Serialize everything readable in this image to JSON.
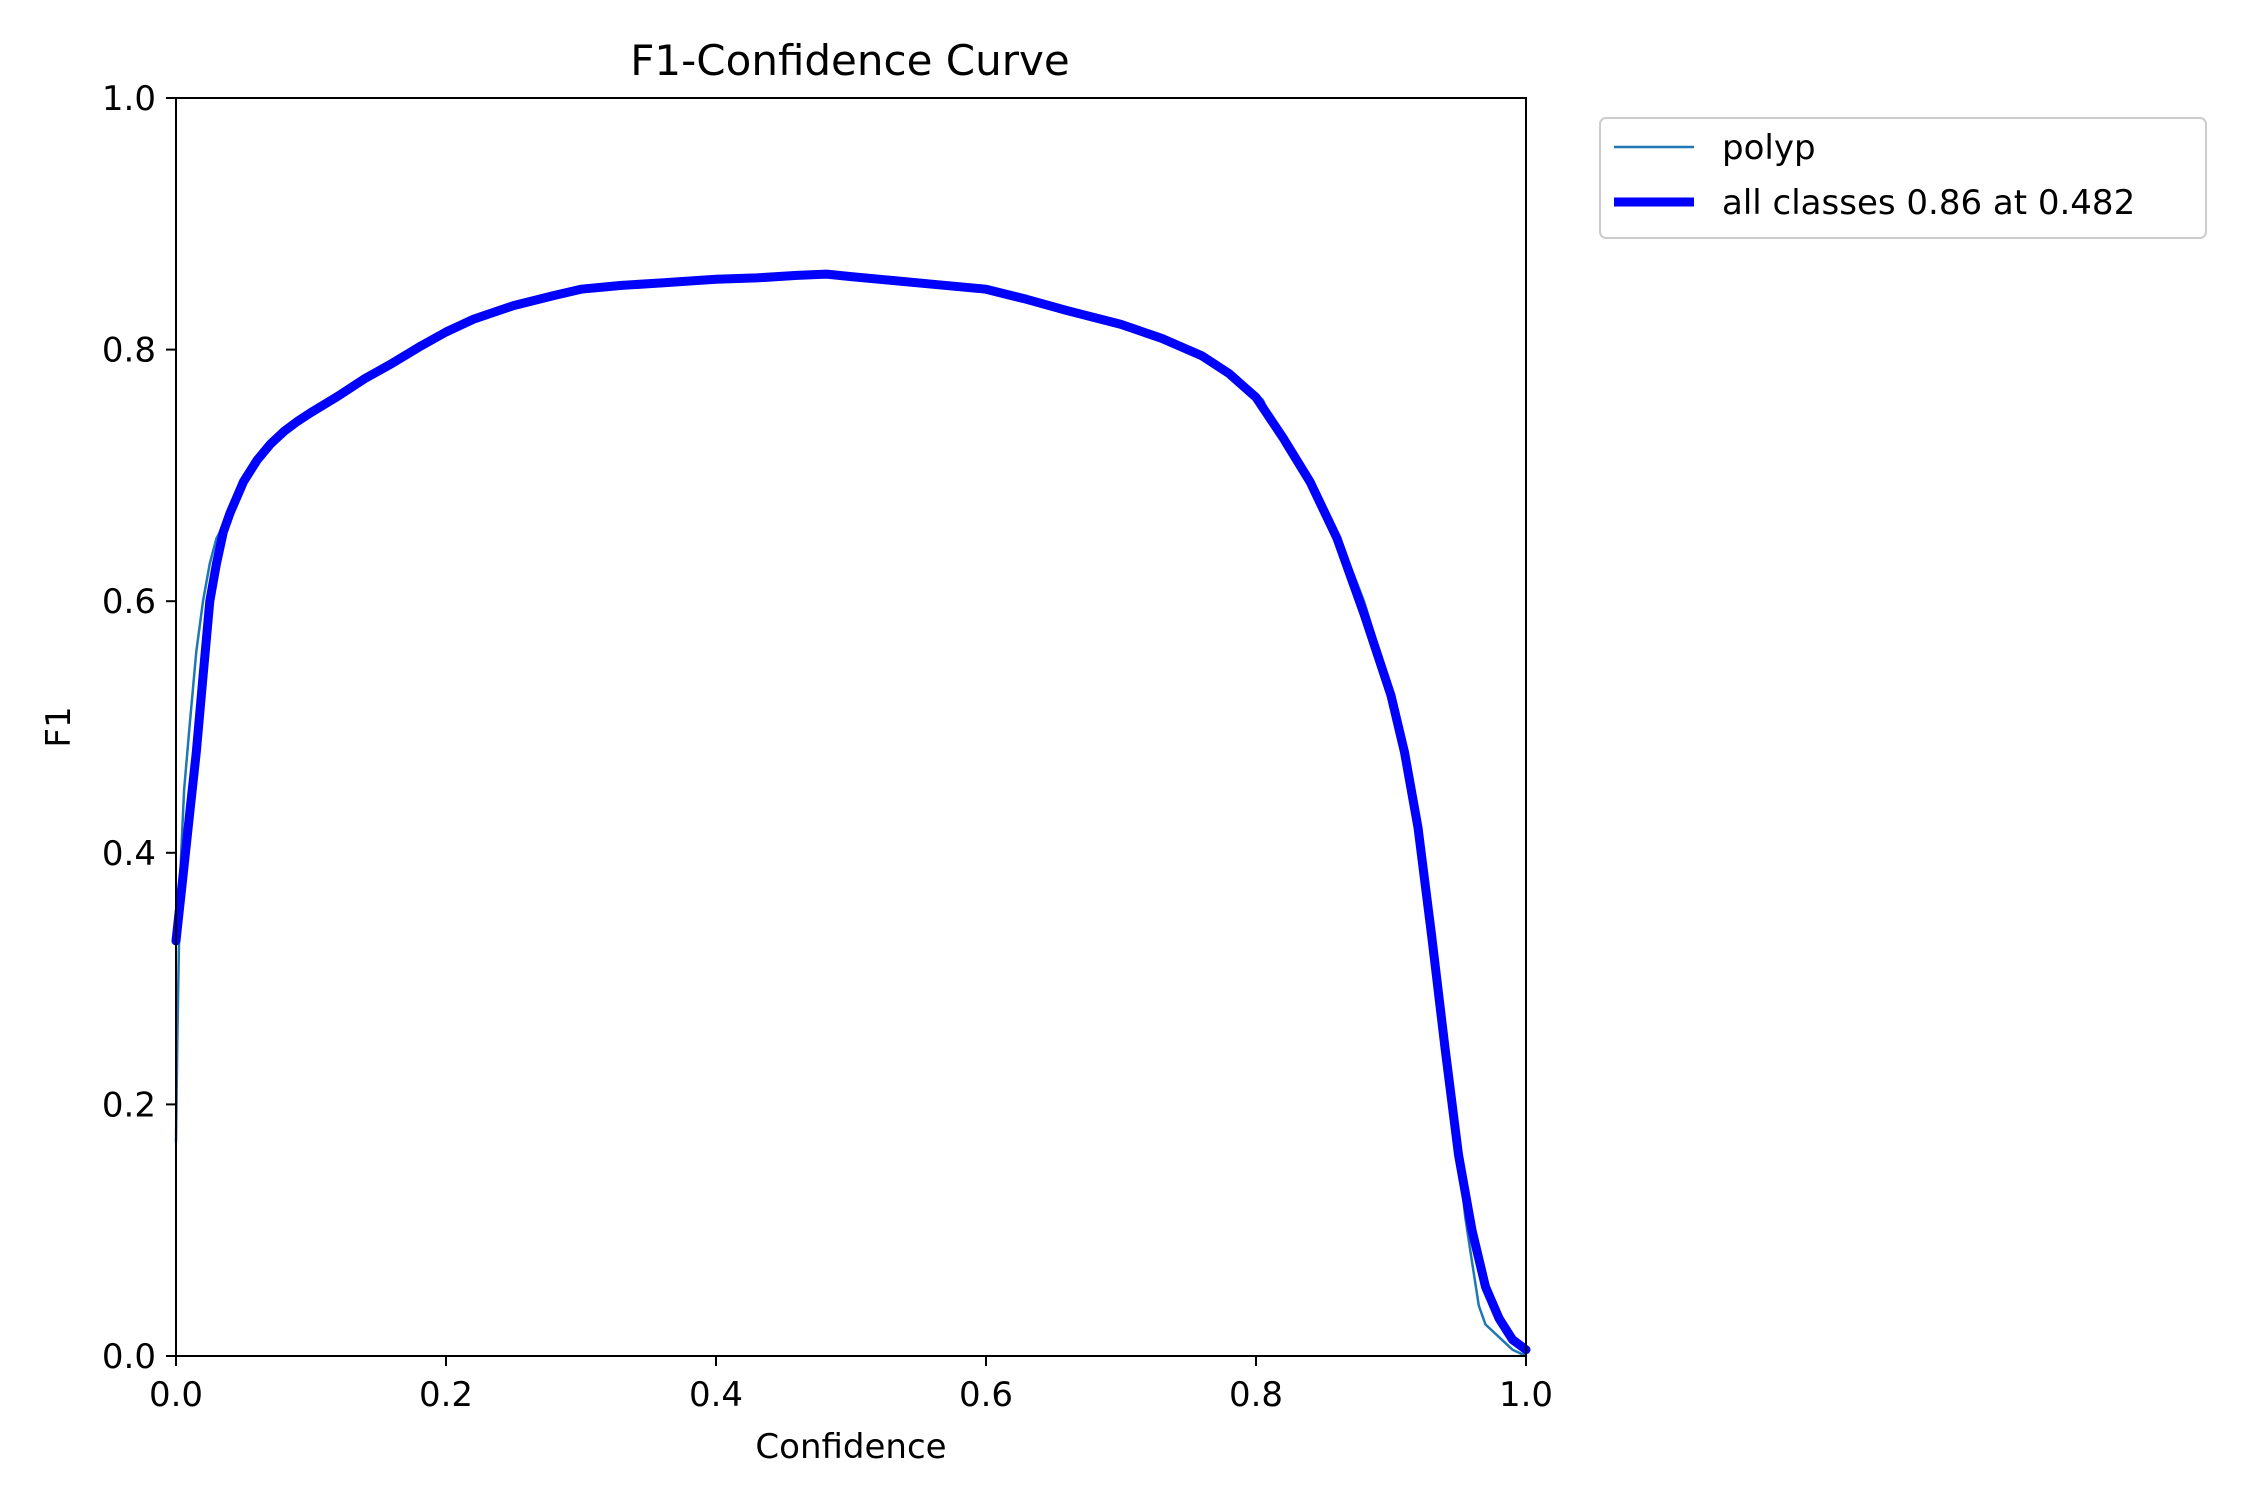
{
  "colors": {
    "polyp": "#1f77b4",
    "all_classes": "#0000ff",
    "axes": "#000000",
    "background": "#ffffff"
  },
  "chart_data": {
    "type": "line",
    "title": "F1-Confidence Curve",
    "xlabel": "Confidence",
    "ylabel": "F1",
    "xlim": [
      0.0,
      1.0
    ],
    "ylim": [
      0.0,
      1.0
    ],
    "xticks": [
      "0.0",
      "0.2",
      "0.4",
      "0.6",
      "0.8",
      "1.0"
    ],
    "yticks": [
      "0.0",
      "0.2",
      "0.4",
      "0.6",
      "0.8",
      "1.0"
    ],
    "grid": false,
    "legend_position": "outside-top-right",
    "series": [
      {
        "name": "polyp",
        "color": "#1f77b4",
        "x": [
          0.0,
          0.001,
          0.003,
          0.006,
          0.01,
          0.015,
          0.02,
          0.025,
          0.03,
          0.035,
          0.04,
          0.05,
          0.06,
          0.07,
          0.08,
          0.09,
          0.1,
          0.12,
          0.14,
          0.16,
          0.18,
          0.2,
          0.22,
          0.25,
          0.28,
          0.3,
          0.33,
          0.36,
          0.4,
          0.43,
          0.46,
          0.482,
          0.5,
          0.53,
          0.56,
          0.6,
          0.63,
          0.66,
          0.7,
          0.73,
          0.76,
          0.78,
          0.8,
          0.805,
          0.82,
          0.84,
          0.86,
          0.88,
          0.9,
          0.91,
          0.92,
          0.925,
          0.93,
          0.94,
          0.95,
          0.955,
          0.96,
          0.965,
          0.97,
          0.98,
          0.99,
          1.0
        ],
        "y": [
          0.17,
          0.25,
          0.38,
          0.45,
          0.5,
          0.56,
          0.6,
          0.63,
          0.65,
          0.66,
          0.67,
          0.69,
          0.71,
          0.725,
          0.735,
          0.745,
          0.75,
          0.765,
          0.78,
          0.79,
          0.805,
          0.815,
          0.825,
          0.835,
          0.843,
          0.848,
          0.851,
          0.853,
          0.856,
          0.857,
          0.859,
          0.86,
          0.858,
          0.855,
          0.852,
          0.848,
          0.84,
          0.832,
          0.82,
          0.81,
          0.795,
          0.78,
          0.765,
          0.76,
          0.725,
          0.69,
          0.655,
          0.6,
          0.53,
          0.48,
          0.43,
          0.39,
          0.33,
          0.25,
          0.16,
          0.11,
          0.075,
          0.04,
          0.025,
          0.015,
          0.005,
          0.0
        ]
      },
      {
        "name": "all classes 0.86 at 0.482",
        "color": "#0000ff",
        "x": [
          0.0,
          0.005,
          0.01,
          0.015,
          0.02,
          0.025,
          0.03,
          0.035,
          0.04,
          0.05,
          0.06,
          0.07,
          0.08,
          0.09,
          0.1,
          0.12,
          0.14,
          0.16,
          0.18,
          0.2,
          0.22,
          0.25,
          0.28,
          0.3,
          0.33,
          0.36,
          0.4,
          0.43,
          0.46,
          0.482,
          0.5,
          0.53,
          0.56,
          0.6,
          0.63,
          0.66,
          0.7,
          0.73,
          0.76,
          0.78,
          0.8,
          0.82,
          0.84,
          0.86,
          0.88,
          0.9,
          0.91,
          0.92,
          0.93,
          0.94,
          0.95,
          0.96,
          0.97,
          0.98,
          0.99,
          1.0
        ],
        "y": [
          0.33,
          0.38,
          0.43,
          0.48,
          0.54,
          0.6,
          0.63,
          0.655,
          0.67,
          0.695,
          0.712,
          0.725,
          0.735,
          0.743,
          0.75,
          0.763,
          0.777,
          0.789,
          0.802,
          0.814,
          0.824,
          0.835,
          0.843,
          0.848,
          0.851,
          0.853,
          0.856,
          0.857,
          0.859,
          0.86,
          0.858,
          0.855,
          0.852,
          0.848,
          0.84,
          0.831,
          0.82,
          0.809,
          0.795,
          0.781,
          0.762,
          0.73,
          0.695,
          0.65,
          0.59,
          0.525,
          0.48,
          0.42,
          0.335,
          0.245,
          0.16,
          0.1,
          0.055,
          0.03,
          0.013,
          0.005
        ]
      }
    ]
  }
}
